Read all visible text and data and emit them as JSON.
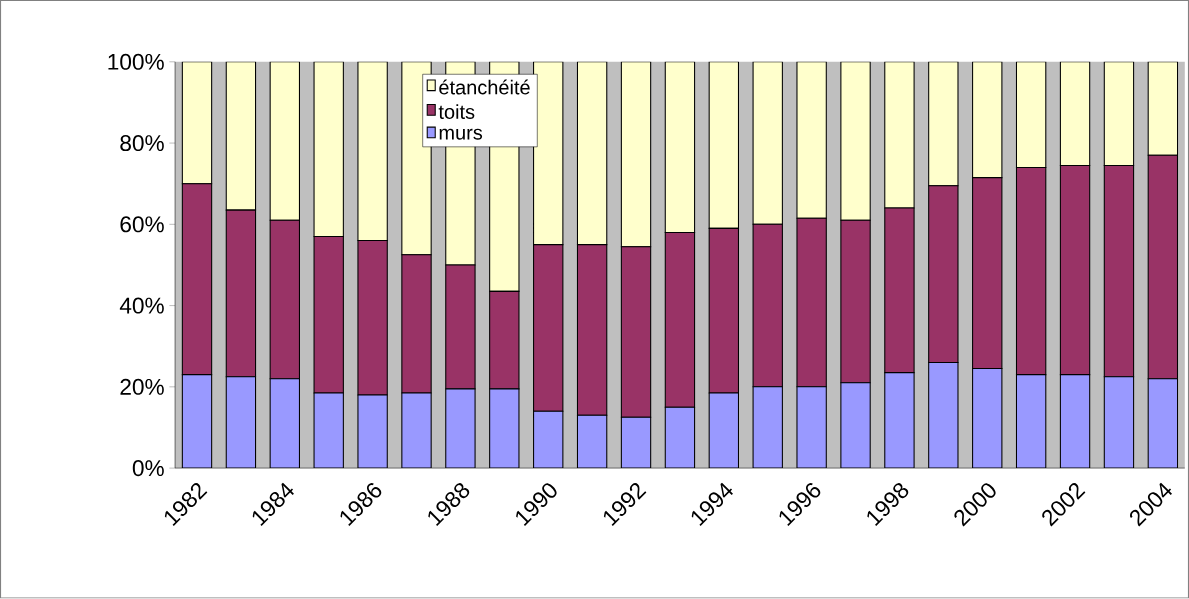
{
  "chart_data": {
    "type": "bar",
    "stacked": true,
    "categories": [
      "1982",
      null,
      "1984",
      null,
      "1986",
      null,
      "1988",
      null,
      "1990",
      null,
      "1992",
      null,
      "1994",
      null,
      "1996",
      null,
      "1998",
      null,
      "2000",
      null,
      "2002",
      null,
      "2004"
    ],
    "series": [
      {
        "name": "murs",
        "color": "#9999ff",
        "values": [
          23,
          22.5,
          22,
          18.5,
          18,
          18.5,
          19.5,
          19.5,
          14,
          13,
          12.5,
          15,
          18.5,
          20,
          20,
          21,
          23.5,
          26,
          24.5,
          23,
          23,
          22.5,
          22
        ]
      },
      {
        "name": "toits",
        "color": "#993366",
        "values": [
          47,
          41,
          39,
          38.5,
          38,
          34,
          30.5,
          24,
          41,
          42,
          42,
          43,
          40.5,
          40,
          41.5,
          40,
          40.5,
          43.5,
          47,
          51,
          51.5,
          52,
          55
        ]
      },
      {
        "name": "étanchéité",
        "color": "#ffffcc",
        "values": [
          30,
          36.5,
          39,
          43,
          44,
          47.5,
          50,
          56.5,
          45,
          45,
          45.5,
          42,
          41,
          40,
          38.5,
          39,
          36,
          30.5,
          28.5,
          26,
          25.5,
          25.5,
          23
        ]
      }
    ],
    "ylim": [
      0,
      100
    ],
    "yticks": [
      {
        "value": 0,
        "label": "0%"
      },
      {
        "value": 20,
        "label": "20%"
      },
      {
        "value": 40,
        "label": "40%"
      },
      {
        "value": 60,
        "label": "60%"
      },
      {
        "value": 80,
        "label": "80%"
      },
      {
        "value": 100,
        "label": "100%"
      }
    ],
    "legend": "top"
  }
}
